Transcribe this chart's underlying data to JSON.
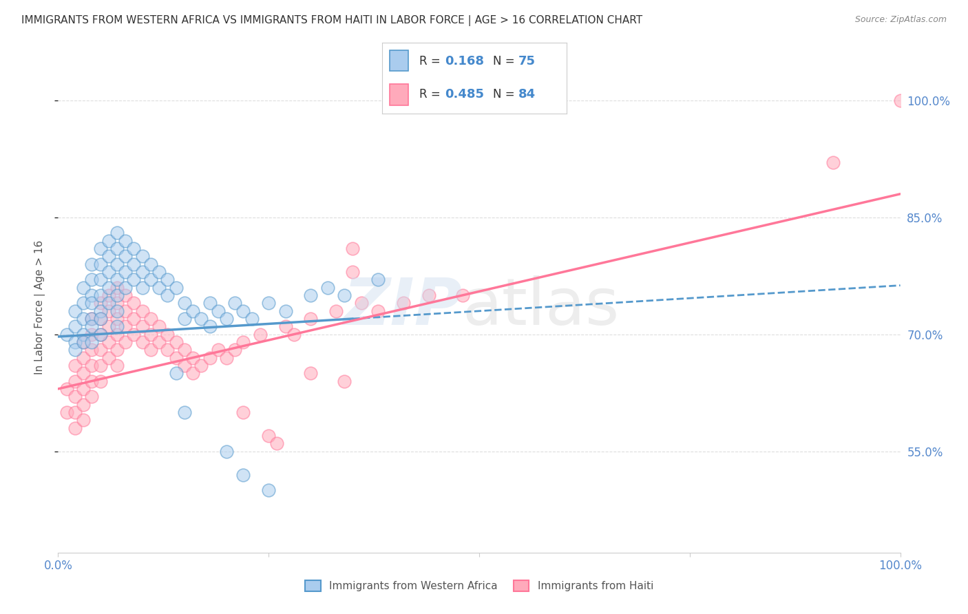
{
  "title": "IMMIGRANTS FROM WESTERN AFRICA VS IMMIGRANTS FROM HAITI IN LABOR FORCE | AGE > 16 CORRELATION CHART",
  "source": "Source: ZipAtlas.com",
  "ylabel": "In Labor Force | Age > 16",
  "ytick_labels": [
    "55.0%",
    "70.0%",
    "85.0%",
    "100.0%"
  ],
  "ytick_values": [
    0.55,
    0.7,
    0.85,
    1.0
  ],
  "xlim": [
    0.0,
    1.0
  ],
  "ylim": [
    0.42,
    1.05
  ],
  "color_blue": "#AACCEE",
  "color_pink": "#FFAABB",
  "line_blue": "#5599CC",
  "line_pink": "#FF7799",
  "grid_color": "#DDDDDD",
  "r1": "0.168",
  "n1": "75",
  "r2": "0.485",
  "n2": "84",
  "blue_x": [
    0.01,
    0.02,
    0.02,
    0.02,
    0.02,
    0.03,
    0.03,
    0.03,
    0.03,
    0.03,
    0.04,
    0.04,
    0.04,
    0.04,
    0.04,
    0.04,
    0.04,
    0.05,
    0.05,
    0.05,
    0.05,
    0.05,
    0.05,
    0.05,
    0.06,
    0.06,
    0.06,
    0.06,
    0.06,
    0.07,
    0.07,
    0.07,
    0.07,
    0.07,
    0.07,
    0.07,
    0.08,
    0.08,
    0.08,
    0.08,
    0.09,
    0.09,
    0.09,
    0.1,
    0.1,
    0.1,
    0.11,
    0.11,
    0.12,
    0.12,
    0.13,
    0.13,
    0.14,
    0.15,
    0.15,
    0.16,
    0.17,
    0.18,
    0.18,
    0.19,
    0.2,
    0.21,
    0.22,
    0.23,
    0.25,
    0.27,
    0.3,
    0.32,
    0.34,
    0.38,
    0.14,
    0.15,
    0.2,
    0.22,
    0.25
  ],
  "blue_y": [
    0.7,
    0.73,
    0.71,
    0.69,
    0.68,
    0.76,
    0.74,
    0.72,
    0.7,
    0.69,
    0.79,
    0.77,
    0.75,
    0.74,
    0.72,
    0.71,
    0.69,
    0.81,
    0.79,
    0.77,
    0.75,
    0.73,
    0.72,
    0.7,
    0.82,
    0.8,
    0.78,
    0.76,
    0.74,
    0.83,
    0.81,
    0.79,
    0.77,
    0.75,
    0.73,
    0.71,
    0.82,
    0.8,
    0.78,
    0.76,
    0.81,
    0.79,
    0.77,
    0.8,
    0.78,
    0.76,
    0.79,
    0.77,
    0.78,
    0.76,
    0.77,
    0.75,
    0.76,
    0.74,
    0.72,
    0.73,
    0.72,
    0.71,
    0.74,
    0.73,
    0.72,
    0.74,
    0.73,
    0.72,
    0.74,
    0.73,
    0.75,
    0.76,
    0.75,
    0.77,
    0.65,
    0.6,
    0.55,
    0.52,
    0.5
  ],
  "pink_x": [
    0.01,
    0.01,
    0.02,
    0.02,
    0.02,
    0.02,
    0.02,
    0.03,
    0.03,
    0.03,
    0.03,
    0.03,
    0.03,
    0.04,
    0.04,
    0.04,
    0.04,
    0.04,
    0.04,
    0.05,
    0.05,
    0.05,
    0.05,
    0.05,
    0.05,
    0.06,
    0.06,
    0.06,
    0.06,
    0.06,
    0.07,
    0.07,
    0.07,
    0.07,
    0.07,
    0.07,
    0.08,
    0.08,
    0.08,
    0.08,
    0.09,
    0.09,
    0.09,
    0.1,
    0.1,
    0.1,
    0.11,
    0.11,
    0.11,
    0.12,
    0.12,
    0.13,
    0.13,
    0.14,
    0.14,
    0.15,
    0.15,
    0.16,
    0.16,
    0.17,
    0.18,
    0.19,
    0.2,
    0.21,
    0.22,
    0.24,
    0.27,
    0.28,
    0.3,
    0.33,
    0.36,
    0.38,
    0.41,
    0.44,
    0.48,
    0.3,
    0.34,
    0.35,
    0.35,
    0.22,
    0.25,
    0.26,
    0.92,
    1.0
  ],
  "pink_y": [
    0.63,
    0.6,
    0.66,
    0.64,
    0.62,
    0.6,
    0.58,
    0.69,
    0.67,
    0.65,
    0.63,
    0.61,
    0.59,
    0.72,
    0.7,
    0.68,
    0.66,
    0.64,
    0.62,
    0.74,
    0.72,
    0.7,
    0.68,
    0.66,
    0.64,
    0.75,
    0.73,
    0.71,
    0.69,
    0.67,
    0.76,
    0.74,
    0.72,
    0.7,
    0.68,
    0.66,
    0.75,
    0.73,
    0.71,
    0.69,
    0.74,
    0.72,
    0.7,
    0.73,
    0.71,
    0.69,
    0.72,
    0.7,
    0.68,
    0.71,
    0.69,
    0.7,
    0.68,
    0.69,
    0.67,
    0.68,
    0.66,
    0.67,
    0.65,
    0.66,
    0.67,
    0.68,
    0.67,
    0.68,
    0.69,
    0.7,
    0.71,
    0.7,
    0.72,
    0.73,
    0.74,
    0.73,
    0.74,
    0.75,
    0.75,
    0.65,
    0.64,
    0.81,
    0.78,
    0.6,
    0.57,
    0.56,
    0.92,
    1.0
  ],
  "blue_trend": [
    0.0,
    0.35,
    0.697,
    0.72
  ],
  "pink_trend": [
    0.0,
    1.0,
    0.63,
    0.88
  ],
  "legend_label_1": "Immigrants from Western Africa",
  "legend_label_2": "Immigrants from Haiti"
}
